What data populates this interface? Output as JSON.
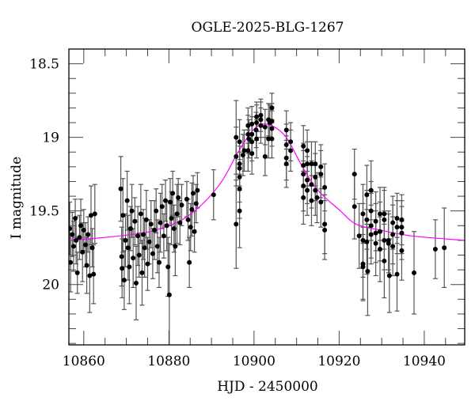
{
  "chart_data": {
    "type": "scatter",
    "title": "OGLE-2025-BLG-1267",
    "xlabel": "HJD - 2450000",
    "ylabel": "I magnitude",
    "xlim": [
      10856.5,
      10949.5
    ],
    "ylim": [
      20.41,
      18.4
    ],
    "y_inverted": true,
    "grid": false,
    "xticks": [
      10860,
      10880,
      10900,
      10920,
      10940
    ],
    "xtick_labels": [
      "10860",
      "10880",
      "10900",
      "10920",
      "10940"
    ],
    "yticks": [
      18.5,
      19,
      19.5,
      20
    ],
    "ytick_labels": [
      "18.5",
      "19",
      "19.5",
      "20"
    ],
    "colors": {
      "points": "#000000",
      "error_bars": "#555555",
      "model": "#ff00ff",
      "axes": "#000000"
    },
    "points_format": [
      "hjd",
      "mag",
      "err"
    ],
    "points": [
      [
        10856.7,
        19.62,
        0.18
      ],
      [
        10856.9,
        19.85,
        0.2
      ],
      [
        10857.3,
        19.66,
        0.15
      ],
      [
        10857.6,
        19.74,
        0.17
      ],
      [
        10858.0,
        19.55,
        0.13
      ],
      [
        10858.2,
        19.7,
        0.16
      ],
      [
        10858.5,
        19.92,
        0.14
      ],
      [
        10859.0,
        19.68,
        0.15
      ],
      [
        10859.3,
        19.6,
        0.18
      ],
      [
        10859.7,
        19.78,
        0.2
      ],
      [
        10860.0,
        19.63,
        0.14
      ],
      [
        10860.4,
        19.73,
        0.15
      ],
      [
        10860.7,
        19.87,
        0.19
      ],
      [
        10861.0,
        19.66,
        0.12
      ],
      [
        10861.4,
        19.94,
        0.25
      ],
      [
        10861.7,
        19.53,
        0.2
      ],
      [
        10862.0,
        19.75,
        0.13
      ],
      [
        10862.3,
        19.93,
        0.2
      ],
      [
        10862.6,
        19.52,
        0.2
      ],
      [
        10868.7,
        19.35,
        0.22
      ],
      [
        10868.9,
        19.81,
        0.2
      ],
      [
        10869.0,
        19.89,
        0.2
      ],
      [
        10869.2,
        19.53,
        0.25
      ],
      [
        10869.5,
        19.97,
        0.2
      ],
      [
        10869.8,
        19.7,
        0.18
      ],
      [
        10870.2,
        19.43,
        0.2
      ],
      [
        10870.4,
        19.75,
        0.22
      ],
      [
        10870.7,
        19.88,
        0.25
      ],
      [
        10871.0,
        19.62,
        0.15
      ],
      [
        10871.3,
        19.5,
        0.18
      ],
      [
        10871.6,
        19.82,
        0.2
      ],
      [
        10872.0,
        19.57,
        0.16
      ],
      [
        10872.3,
        19.99,
        0.25
      ],
      [
        10872.7,
        19.67,
        0.2
      ],
      [
        10873.0,
        19.8,
        0.15
      ],
      [
        10873.4,
        19.52,
        0.2
      ],
      [
        10873.7,
        19.92,
        0.22
      ],
      [
        10874.0,
        19.66,
        0.17
      ],
      [
        10874.3,
        19.75,
        0.2
      ],
      [
        10874.7,
        19.56,
        0.2
      ],
      [
        10875.0,
        19.86,
        0.18
      ],
      [
        10875.4,
        19.71,
        0.15
      ],
      [
        10875.8,
        19.59,
        0.16
      ],
      [
        10876.2,
        19.79,
        0.17
      ],
      [
        10876.6,
        19.63,
        0.2
      ],
      [
        10877.0,
        19.5,
        0.15
      ],
      [
        10877.3,
        19.74,
        0.18
      ],
      [
        10877.7,
        19.85,
        0.17
      ],
      [
        10878.0,
        19.58,
        0.2
      ],
      [
        10878.4,
        19.47,
        0.15
      ],
      [
        10878.8,
        19.67,
        0.15
      ],
      [
        10879.2,
        19.43,
        0.14
      ],
      [
        10879.5,
        19.6,
        0.17
      ],
      [
        10879.8,
        19.88,
        0.2
      ],
      [
        10880.1,
        20.07,
        0.35
      ],
      [
        10880.3,
        19.44,
        0.16
      ],
      [
        10880.6,
        19.55,
        0.18
      ],
      [
        10880.9,
        19.38,
        0.15
      ],
      [
        10881.2,
        19.62,
        0.16
      ],
      [
        10881.5,
        19.74,
        0.2
      ],
      [
        10881.9,
        19.52,
        0.2
      ],
      [
        10882.2,
        19.41,
        0.13
      ],
      [
        10882.6,
        19.58,
        0.15
      ],
      [
        10883.0,
        19.46,
        0.14
      ],
      [
        10884.2,
        19.42,
        0.12
      ],
      [
        10884.5,
        19.56,
        0.14
      ],
      [
        10884.8,
        19.85,
        0.17
      ],
      [
        10885.1,
        19.61,
        0.16
      ],
      [
        10885.4,
        19.49,
        0.18
      ],
      [
        10885.7,
        19.38,
        0.12
      ],
      [
        10886.0,
        19.64,
        0.14
      ],
      [
        10886.4,
        19.45,
        0.13
      ],
      [
        10886.7,
        19.36,
        0.12
      ],
      [
        10890.5,
        19.39,
        0.17
      ],
      [
        10895.8,
        19.0,
        0.25
      ],
      [
        10895.8,
        19.13,
        0.2
      ],
      [
        10895.8,
        19.59,
        0.3
      ],
      [
        10896.6,
        19.03,
        0.15
      ],
      [
        10896.6,
        19.18,
        0.15
      ],
      [
        10896.6,
        19.21,
        0.15
      ],
      [
        10896.6,
        19.27,
        0.17
      ],
      [
        10896.6,
        19.35,
        0.2
      ],
      [
        10896.6,
        19.5,
        0.25
      ],
      [
        10897.4,
        19.12,
        0.14
      ],
      [
        10897.7,
        19.09,
        0.14
      ],
      [
        10898.6,
        18.92,
        0.12
      ],
      [
        10898.6,
        18.98,
        0.13
      ],
      [
        10898.6,
        19.09,
        0.14
      ],
      [
        10898.8,
        19.01,
        0.13
      ],
      [
        10899.5,
        18.91,
        0.12
      ],
      [
        10899.5,
        18.98,
        0.12
      ],
      [
        10899.5,
        19.03,
        0.13
      ],
      [
        10899.5,
        19.11,
        0.14
      ],
      [
        10900.5,
        18.95,
        0.12
      ],
      [
        10900.6,
        18.86,
        0.1
      ],
      [
        10900.6,
        18.9,
        0.12
      ],
      [
        10900.6,
        19.01,
        0.13
      ],
      [
        10901.6,
        18.85,
        0.11
      ],
      [
        10901.6,
        18.88,
        0.12
      ],
      [
        10901.6,
        18.92,
        0.12
      ],
      [
        10902.6,
        18.93,
        0.12
      ],
      [
        10902.6,
        19.13,
        0.13
      ],
      [
        10903.4,
        18.88,
        0.11
      ],
      [
        10903.4,
        19.01,
        0.13
      ],
      [
        10903.7,
        18.9,
        0.12
      ],
      [
        10904.2,
        18.8,
        0.1
      ],
      [
        10904.2,
        18.89,
        0.12
      ],
      [
        10904.2,
        18.94,
        0.12
      ],
      [
        10904.2,
        19.01,
        0.13
      ],
      [
        10907.6,
        18.95,
        0.13
      ],
      [
        10907.6,
        19.05,
        0.14
      ],
      [
        10907.6,
        19.14,
        0.15
      ],
      [
        10907.6,
        19.18,
        0.16
      ],
      [
        10908.6,
        19.03,
        0.13
      ],
      [
        10908.6,
        19.09,
        0.14
      ],
      [
        10911.6,
        19.06,
        0.14
      ],
      [
        10911.6,
        19.19,
        0.15
      ],
      [
        10911.6,
        19.25,
        0.16
      ],
      [
        10911.6,
        19.33,
        0.17
      ],
      [
        10911.6,
        19.41,
        0.18
      ],
      [
        10912.5,
        19.09,
        0.14
      ],
      [
        10912.5,
        19.18,
        0.15
      ],
      [
        10912.5,
        19.29,
        0.16
      ],
      [
        10912.5,
        19.36,
        0.17
      ],
      [
        10913.5,
        19.18,
        0.15
      ],
      [
        10913.5,
        19.32,
        0.16
      ],
      [
        10913.5,
        19.43,
        0.17
      ],
      [
        10914.4,
        19.18,
        0.15
      ],
      [
        10914.4,
        19.27,
        0.16
      ],
      [
        10914.4,
        19.36,
        0.17
      ],
      [
        10914.8,
        19.41,
        0.17
      ],
      [
        10915.7,
        19.2,
        0.15
      ],
      [
        10915.7,
        19.25,
        0.16
      ],
      [
        10915.7,
        19.44,
        0.17
      ],
      [
        10916.6,
        19.34,
        0.16
      ],
      [
        10916.6,
        19.59,
        0.2
      ],
      [
        10916.6,
        19.63,
        0.2
      ],
      [
        10923.6,
        19.25,
        0.17
      ],
      [
        10923.6,
        19.47,
        0.22
      ],
      [
        10924.7,
        19.67,
        0.22
      ],
      [
        10925.6,
        19.52,
        0.2
      ],
      [
        10925.6,
        19.7,
        0.25
      ],
      [
        10925.6,
        19.86,
        0.25
      ],
      [
        10925.6,
        19.88,
        0.22
      ],
      [
        10926.5,
        19.39,
        0.2
      ],
      [
        10926.5,
        19.56,
        0.2
      ],
      [
        10926.5,
        19.71,
        0.22
      ],
      [
        10926.7,
        19.91,
        0.3
      ],
      [
        10927.5,
        19.36,
        0.2
      ],
      [
        10927.5,
        19.5,
        0.2
      ],
      [
        10927.5,
        19.6,
        0.22
      ],
      [
        10927.5,
        19.66,
        0.2
      ],
      [
        10928.6,
        19.57,
        0.2
      ],
      [
        10928.6,
        19.65,
        0.2
      ],
      [
        10928.6,
        19.72,
        0.22
      ],
      [
        10929.6,
        19.52,
        0.18
      ],
      [
        10929.6,
        19.64,
        0.2
      ],
      [
        10929.6,
        19.76,
        0.22
      ],
      [
        10930.6,
        19.52,
        0.18
      ],
      [
        10930.6,
        19.56,
        0.2
      ],
      [
        10930.6,
        19.7,
        0.2
      ],
      [
        10930.6,
        19.84,
        0.25
      ],
      [
        10931.6,
        19.7,
        0.2
      ],
      [
        10931.6,
        19.72,
        0.2
      ],
      [
        10931.8,
        19.94,
        0.25
      ],
      [
        10932.6,
        19.58,
        0.18
      ],
      [
        10932.6,
        19.66,
        0.2
      ],
      [
        10932.6,
        19.74,
        0.2
      ],
      [
        10933.6,
        19.55,
        0.17
      ],
      [
        10933.6,
        19.61,
        0.18
      ],
      [
        10933.6,
        19.93,
        0.25
      ],
      [
        10934.7,
        19.56,
        0.17
      ],
      [
        10934.7,
        19.61,
        0.18
      ],
      [
        10934.7,
        19.65,
        0.18
      ],
      [
        10934.7,
        19.77,
        0.2
      ],
      [
        10937.6,
        19.92,
        0.28
      ],
      [
        10942.6,
        19.76,
        0.2
      ],
      [
        10944.7,
        19.75,
        0.27
      ]
    ],
    "model_curve": {
      "x": [
        10856.5,
        10865,
        10873.8,
        10878,
        10883.1,
        10888,
        10892.4,
        10896.1,
        10899.8,
        10903.0,
        10907.3,
        10911.0,
        10914.7,
        10920.3,
        10924.0,
        10929.6,
        10937.1,
        10949.5
      ],
      "y": [
        19.7,
        19.68,
        19.65,
        19.62,
        19.56,
        19.45,
        19.3,
        19.11,
        18.95,
        18.91,
        18.99,
        19.18,
        19.35,
        19.5,
        19.59,
        19.63,
        19.67,
        19.7
      ]
    }
  }
}
